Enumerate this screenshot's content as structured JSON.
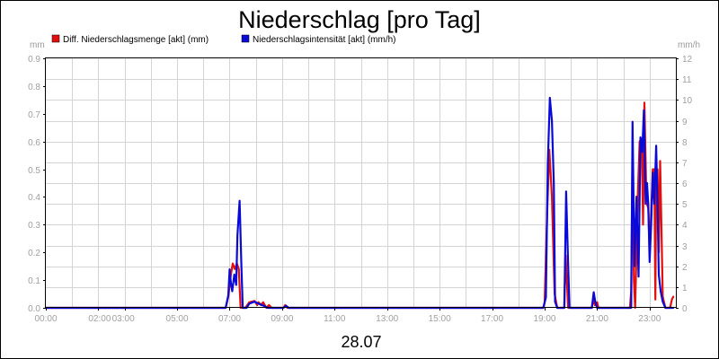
{
  "chart_data": {
    "type": "line",
    "title": "Niederschlag [pro Tag]",
    "date_label": "28.07",
    "y_left": {
      "unit": "mm",
      "range": [
        0,
        0.9
      ],
      "ticks": [
        "0.0",
        "0.1",
        "0.2",
        "0.3",
        "0.4",
        "0.5",
        "0.6",
        "0.7",
        "0.8",
        "0.9"
      ]
    },
    "y_right": {
      "unit": "mm/h",
      "range": [
        0,
        12
      ],
      "ticks": [
        "0",
        "1",
        "2",
        "3",
        "4",
        "5",
        "6",
        "7",
        "8",
        "9",
        "10",
        "11",
        "12"
      ]
    },
    "x_axis": {
      "range_hours": [
        0,
        24
      ],
      "ticks": [
        {
          "hour": 0,
          "label": "00:00"
        },
        {
          "hour": 2,
          "label": "02:00"
        },
        {
          "hour": 3,
          "label": "03:00"
        },
        {
          "hour": 5,
          "label": "05:00"
        },
        {
          "hour": 7,
          "label": "07:00"
        },
        {
          "hour": 9,
          "label": "09:00"
        },
        {
          "hour": 11,
          "label": "11:00"
        },
        {
          "hour": 13,
          "label": "13:00"
        },
        {
          "hour": 15,
          "label": "15:00"
        },
        {
          "hour": 17,
          "label": "17:00"
        },
        {
          "hour": 19,
          "label": "19:00"
        },
        {
          "hour": 21,
          "label": "21:00"
        },
        {
          "hour": 23,
          "label": "23:00"
        }
      ]
    },
    "grid": true,
    "legend_position": "top-left",
    "series": [
      {
        "name": "Diff. Niederschlagsmenge [akt] (mm)",
        "axis": "left",
        "color": "#e01010",
        "points": [
          [
            0,
            0
          ],
          [
            6.85,
            0
          ],
          [
            6.95,
            0.04
          ],
          [
            7.05,
            0.12
          ],
          [
            7.12,
            0.16
          ],
          [
            7.2,
            0.14
          ],
          [
            7.28,
            0.16
          ],
          [
            7.35,
            0.14
          ],
          [
            7.42,
            0
          ],
          [
            7.6,
            0
          ],
          [
            7.75,
            0.02
          ],
          [
            7.95,
            0.025
          ],
          [
            8.05,
            0.01
          ],
          [
            8.1,
            0.02
          ],
          [
            8.2,
            0.01
          ],
          [
            8.28,
            0.02
          ],
          [
            8.4,
            0
          ],
          [
            8.5,
            0.01
          ],
          [
            8.6,
            0
          ],
          [
            9.05,
            0
          ],
          [
            9.12,
            0.01
          ],
          [
            9.2,
            0
          ],
          [
            18.95,
            0
          ],
          [
            19.0,
            0.02
          ],
          [
            19.1,
            0.35
          ],
          [
            19.18,
            0.57
          ],
          [
            19.28,
            0.4
          ],
          [
            19.38,
            0.05
          ],
          [
            19.48,
            0
          ],
          [
            19.75,
            0
          ],
          [
            19.8,
            0.19
          ],
          [
            19.9,
            0
          ],
          [
            20.8,
            0
          ],
          [
            20.86,
            0.03
          ],
          [
            20.92,
            0.01
          ],
          [
            21.0,
            0.02
          ],
          [
            21.05,
            0
          ],
          [
            22.25,
            0
          ],
          [
            22.3,
            0.06
          ],
          [
            22.35,
            0.56
          ],
          [
            22.4,
            0.1
          ],
          [
            22.45,
            0
          ],
          [
            22.5,
            0.2
          ],
          [
            22.55,
            0.4
          ],
          [
            22.62,
            0.6
          ],
          [
            22.7,
            0.61
          ],
          [
            22.75,
            0.3
          ],
          [
            22.8,
            0.74
          ],
          [
            22.88,
            0.38
          ],
          [
            22.95,
            0.36
          ],
          [
            23.0,
            0.2
          ],
          [
            23.05,
            0.32
          ],
          [
            23.12,
            0.5
          ],
          [
            23.18,
            0.5
          ],
          [
            23.22,
            0.03
          ],
          [
            23.25,
            0.48
          ],
          [
            23.3,
            0.5
          ],
          [
            23.35,
            0.2
          ],
          [
            23.4,
            0.53
          ],
          [
            23.45,
            0.3
          ],
          [
            23.5,
            0.04
          ],
          [
            23.6,
            0
          ],
          [
            23.78,
            0
          ],
          [
            23.85,
            0.03
          ],
          [
            23.9,
            0.04
          ]
        ]
      },
      {
        "name": "Niederschlagsintensität [akt] (mm/h)",
        "axis": "right",
        "color": "#0a0ad8",
        "points": [
          [
            0,
            0
          ],
          [
            6.85,
            0
          ],
          [
            6.95,
            0.6
          ],
          [
            7.0,
            1.85
          ],
          [
            7.05,
            1.2
          ],
          [
            7.1,
            0.8
          ],
          [
            7.18,
            1.6
          ],
          [
            7.25,
            1.1
          ],
          [
            7.3,
            3.5
          ],
          [
            7.38,
            5.15
          ],
          [
            7.45,
            2.0
          ],
          [
            7.5,
            0
          ],
          [
            7.65,
            0
          ],
          [
            7.75,
            0.2
          ],
          [
            7.95,
            0.3
          ],
          [
            8.1,
            0.2
          ],
          [
            8.3,
            0.1
          ],
          [
            8.45,
            0
          ],
          [
            9.05,
            0
          ],
          [
            9.15,
            0.1
          ],
          [
            9.25,
            0
          ],
          [
            18.95,
            0
          ],
          [
            19.05,
            0.5
          ],
          [
            19.12,
            6.9
          ],
          [
            19.2,
            10.1
          ],
          [
            19.28,
            9.0
          ],
          [
            19.35,
            6.0
          ],
          [
            19.4,
            0.3
          ],
          [
            19.48,
            0
          ],
          [
            19.75,
            0
          ],
          [
            19.82,
            5.6
          ],
          [
            19.9,
            2.0
          ],
          [
            19.95,
            0
          ],
          [
            20.8,
            0
          ],
          [
            20.87,
            0.75
          ],
          [
            20.93,
            0.3
          ],
          [
            21.0,
            0
          ],
          [
            22.3,
            0
          ],
          [
            22.35,
            8.95
          ],
          [
            22.42,
            2.0
          ],
          [
            22.5,
            5.35
          ],
          [
            22.58,
            1.5
          ],
          [
            22.65,
            8.2
          ],
          [
            22.72,
            7.5
          ],
          [
            22.78,
            9.5
          ],
          [
            22.85,
            5.0
          ],
          [
            22.9,
            6.0
          ],
          [
            22.95,
            5.0
          ],
          [
            23.0,
            2.2
          ],
          [
            23.06,
            4.0
          ],
          [
            23.12,
            6.5
          ],
          [
            23.18,
            5.0
          ],
          [
            23.25,
            7.8
          ],
          [
            23.3,
            5.0
          ],
          [
            23.35,
            1.6
          ],
          [
            23.42,
            0.8
          ],
          [
            23.5,
            0.3
          ],
          [
            23.6,
            0
          ],
          [
            23.9,
            0
          ]
        ]
      }
    ]
  }
}
